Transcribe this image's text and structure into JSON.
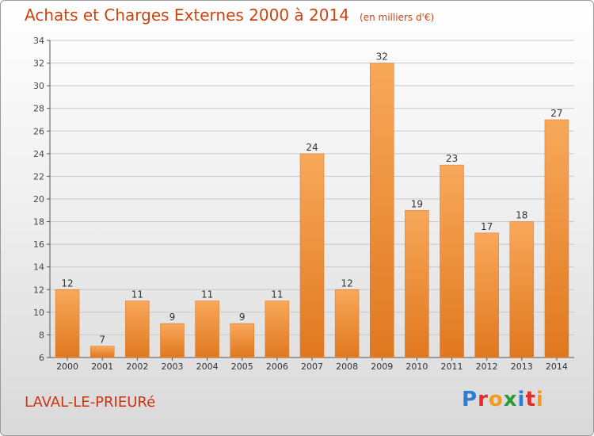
{
  "header": {
    "title": "Achats et Charges Externes 2000 à 2014",
    "subtitle": "(en milliers d'€)"
  },
  "footer": {
    "town": "LAVAL-LE-PRIEURé",
    "logo_text": "Proxiti",
    "logo_colors": [
      "#2a7fd4",
      "#e8292a",
      "#f59a1b",
      "#2a9a3a",
      "#2a7fd4",
      "#e8292a",
      "#f59a1b"
    ]
  },
  "chart_data": {
    "type": "bar",
    "title": "Achats et Charges Externes 2000 à 2014",
    "subtitle": "(en milliers d'€)",
    "xlabel": "",
    "ylabel": "",
    "categories": [
      "2000",
      "2001",
      "2002",
      "2003",
      "2004",
      "2005",
      "2006",
      "2007",
      "2008",
      "2009",
      "2010",
      "2011",
      "2012",
      "2013",
      "2014"
    ],
    "values": [
      12,
      7,
      11,
      9,
      11,
      9,
      11,
      24,
      12,
      32,
      19,
      23,
      17,
      18,
      27
    ],
    "ylim": [
      6,
      34
    ],
    "yticks": [
      6,
      8,
      10,
      12,
      14,
      16,
      18,
      20,
      22,
      24,
      26,
      28,
      30,
      32,
      34
    ],
    "grid": true,
    "bar_color_light": "#f8a85a",
    "bar_color_dark": "#e0781f",
    "legend": "none"
  }
}
